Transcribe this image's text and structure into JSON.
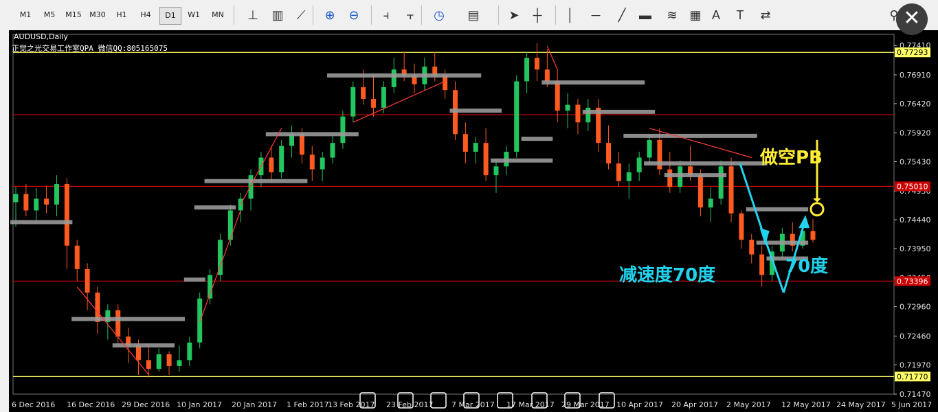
{
  "toolbar": {
    "timeframes": [
      "M1",
      "M5",
      "M15",
      "M30",
      "H1",
      "H4",
      "D1",
      "W1",
      "MN"
    ],
    "selected_timeframe": "D1",
    "icons": [
      "bar-chart-icon",
      "candlestick-icon",
      "line-chart-icon",
      "zoom-in-icon",
      "zoom-out-icon",
      "chart-shift-icon",
      "autoscroll-icon",
      "clock-icon",
      "template-icon",
      "cursor-icon",
      "crosshair-icon",
      "vertical-line-icon",
      "horizontal-line-icon",
      "trendline-icon",
      "rectangle-icon",
      "fibonacci-icon",
      "channel-icon",
      "text-icon",
      "text-label-icon",
      "arrows-icon",
      "search-icon"
    ]
  },
  "chart": {
    "symbol": "AUDUSD,Daily",
    "subtitle": "正觉之光交易工作室QPA 微信QQ:805165075",
    "y_ticks": [
      "0.77410",
      "0.76910",
      "0.76420",
      "0.75920",
      "0.75430",
      "0.74930",
      "0.74440",
      "0.73950",
      "0.73450",
      "0.72960",
      "0.72460",
      "0.71970",
      "0.71470"
    ],
    "x_ticks": [
      "6 Dec 2016",
      "16 Dec 2016",
      "29 Dec 2016",
      "10 Jan 2017",
      "20 Jan 2017",
      "1 Feb 2017",
      "13 Feb 2017",
      "23 Feb 2017",
      "7 Mar 2017",
      "17 Mar 2017",
      "29 Mar 2017",
      "10 Apr 2017",
      "20 Apr 2017",
      "2 May 2017",
      "12 May 2017",
      "24 May 2017",
      "5 Jun 2017"
    ],
    "level_tags": [
      {
        "value": "0.77293",
        "bg": "#ffff66",
        "fg": "#000000"
      },
      {
        "value": "0.75010",
        "bg": "#cc0000",
        "fg": "#ffffff"
      },
      {
        "value": "0.73396",
        "bg": "#cc0000",
        "fg": "#ffffff"
      },
      {
        "value": "0.71770",
        "bg": "#ffff66",
        "fg": "#000000"
      }
    ],
    "annotations": {
      "short_pb": "做空PB",
      "decel": "减速度70度",
      "angle": "70度"
    },
    "colors": {
      "bull": "#22c55e",
      "bear": "#ff5a1f",
      "gray_level": "#9a9a9a",
      "yellow": "#ffff66",
      "red": "#cc0000",
      "cyan": "#22d3ee",
      "annotation_yellow": "#ffee33"
    }
  },
  "chart_data": {
    "type": "candlestick",
    "symbol": "AUDUSD",
    "timeframe": "Daily",
    "ylim": [
      0.7147,
      0.776
    ],
    "horizontal_levels": [
      0.77293,
      0.7623,
      0.7501,
      0.73396,
      0.7177
    ],
    "ohlc": [
      [
        0.7474,
        0.75,
        0.7432,
        0.7488
      ],
      [
        0.7488,
        0.7505,
        0.745,
        0.746
      ],
      [
        0.746,
        0.7498,
        0.744,
        0.748
      ],
      [
        0.748,
        0.7502,
        0.7455,
        0.747
      ],
      [
        0.747,
        0.752,
        0.745,
        0.7505
      ],
      [
        0.7505,
        0.7515,
        0.736,
        0.74
      ],
      [
        0.74,
        0.741,
        0.734,
        0.736
      ],
      [
        0.736,
        0.737,
        0.729,
        0.732
      ],
      [
        0.732,
        0.733,
        0.725,
        0.727
      ],
      [
        0.727,
        0.73,
        0.724,
        0.729
      ],
      [
        0.729,
        0.73,
        0.723,
        0.7245
      ],
      [
        0.7245,
        0.726,
        0.72,
        0.723
      ],
      [
        0.723,
        0.724,
        0.718,
        0.7205
      ],
      [
        0.7205,
        0.723,
        0.7175,
        0.719
      ],
      [
        0.719,
        0.7225,
        0.7185,
        0.7215
      ],
      [
        0.7215,
        0.722,
        0.718,
        0.7195
      ],
      [
        0.7195,
        0.723,
        0.7185,
        0.7205
      ],
      [
        0.7205,
        0.7245,
        0.7195,
        0.7235
      ],
      [
        0.7235,
        0.732,
        0.7225,
        0.731
      ],
      [
        0.731,
        0.736,
        0.73,
        0.735
      ],
      [
        0.735,
        0.742,
        0.734,
        0.741
      ],
      [
        0.741,
        0.747,
        0.74,
        0.746
      ],
      [
        0.746,
        0.749,
        0.744,
        0.748
      ],
      [
        0.748,
        0.753,
        0.746,
        0.752
      ],
      [
        0.752,
        0.756,
        0.75,
        0.755
      ],
      [
        0.755,
        0.757,
        0.751,
        0.7525
      ],
      [
        0.7525,
        0.758,
        0.7515,
        0.757
      ],
      [
        0.757,
        0.7605,
        0.755,
        0.759
      ],
      [
        0.759,
        0.76,
        0.754,
        0.7555
      ],
      [
        0.7555,
        0.757,
        0.751,
        0.753
      ],
      [
        0.753,
        0.756,
        0.751,
        0.755
      ],
      [
        0.755,
        0.759,
        0.754,
        0.7575
      ],
      [
        0.7575,
        0.763,
        0.7565,
        0.762
      ],
      [
        0.762,
        0.768,
        0.761,
        0.767
      ],
      [
        0.767,
        0.77,
        0.764,
        0.765
      ],
      [
        0.765,
        0.769,
        0.762,
        0.7635
      ],
      [
        0.7635,
        0.768,
        0.7625,
        0.767
      ],
      [
        0.767,
        0.772,
        0.766,
        0.77
      ],
      [
        0.77,
        0.773,
        0.768,
        0.769
      ],
      [
        0.769,
        0.771,
        0.766,
        0.7675
      ],
      [
        0.7675,
        0.772,
        0.7665,
        0.7705
      ],
      [
        0.7705,
        0.773,
        0.768,
        0.769
      ],
      [
        0.769,
        0.77,
        0.765,
        0.7665
      ],
      [
        0.7665,
        0.768,
        0.758,
        0.759
      ],
      [
        0.759,
        0.761,
        0.754,
        0.756
      ],
      [
        0.756,
        0.7585,
        0.754,
        0.7575
      ],
      [
        0.7575,
        0.76,
        0.751,
        0.752
      ],
      [
        0.752,
        0.7545,
        0.749,
        0.7535
      ],
      [
        0.7535,
        0.757,
        0.752,
        0.756
      ],
      [
        0.756,
        0.769,
        0.755,
        0.768
      ],
      [
        0.768,
        0.773,
        0.766,
        0.772
      ],
      [
        0.772,
        0.7745,
        0.768,
        0.77
      ],
      [
        0.77,
        0.7735,
        0.767,
        0.768
      ],
      [
        0.768,
        0.77,
        0.761,
        0.763
      ],
      [
        0.763,
        0.766,
        0.76,
        0.764
      ],
      [
        0.764,
        0.765,
        0.759,
        0.761
      ],
      [
        0.761,
        0.765,
        0.7595,
        0.7635
      ],
      [
        0.7635,
        0.765,
        0.756,
        0.7575
      ],
      [
        0.7575,
        0.7605,
        0.753,
        0.754
      ],
      [
        0.754,
        0.756,
        0.75,
        0.751
      ],
      [
        0.751,
        0.754,
        0.748,
        0.7525
      ],
      [
        0.7525,
        0.756,
        0.751,
        0.755
      ],
      [
        0.755,
        0.759,
        0.754,
        0.758
      ],
      [
        0.758,
        0.76,
        0.752,
        0.753
      ],
      [
        0.753,
        0.756,
        0.749,
        0.75
      ],
      [
        0.75,
        0.7545,
        0.749,
        0.7535
      ],
      [
        0.7535,
        0.757,
        0.751,
        0.752
      ],
      [
        0.752,
        0.753,
        0.745,
        0.7465
      ],
      [
        0.7465,
        0.75,
        0.744,
        0.748
      ],
      [
        0.748,
        0.7545,
        0.747,
        0.7535
      ],
      [
        0.7535,
        0.755,
        0.744,
        0.7455
      ],
      [
        0.7455,
        0.746,
        0.7395,
        0.741
      ],
      [
        0.741,
        0.742,
        0.737,
        0.7385
      ],
      [
        0.7385,
        0.74,
        0.733,
        0.735
      ],
      [
        0.735,
        0.74,
        0.734,
        0.739
      ],
      [
        0.739,
        0.743,
        0.738,
        0.742
      ],
      [
        0.742,
        0.744,
        0.739,
        0.74
      ],
      [
        0.74,
        0.744,
        0.7395,
        0.7425
      ],
      [
        0.7425,
        0.7445,
        0.7405,
        0.741
      ]
    ]
  }
}
